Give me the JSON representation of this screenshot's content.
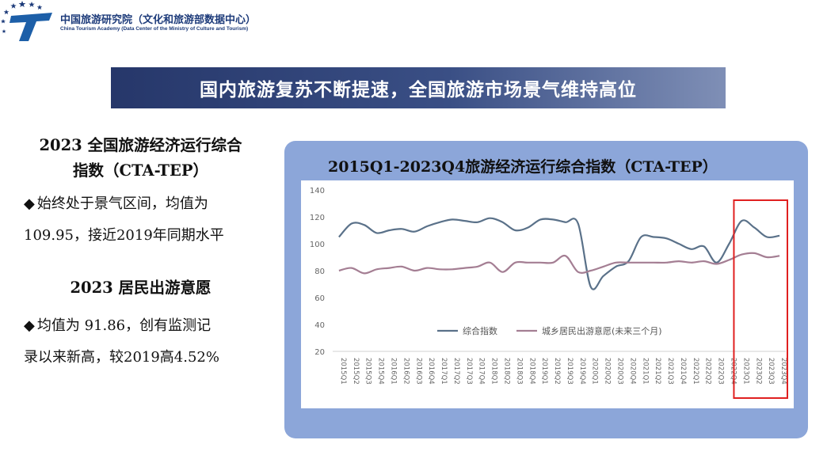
{
  "header": {
    "org_cn": "中国旅游研究院（文化和旅游部数据中心）",
    "org_en": "China Tourism Academy (Data Center of the Ministry of Culture and Tourism)",
    "logo_colors": {
      "blue": "#1d5fa8",
      "star": "#1d3b7a"
    }
  },
  "banner": {
    "title": "国内旅游复苏不断提速，全国旅游市场景气维持高位"
  },
  "left_panel": {
    "section1": {
      "title_line1": "2023 全国旅游经济运行综合",
      "title_line2": "指数（CTA-TEP）",
      "text_line1": "始终处于景气区间，均值为",
      "text_line2": "109.95，接近2019年同期水平"
    },
    "section2": {
      "title": "2023 居民出游意愿",
      "text_line1": "均值为 91.86，创有监测记",
      "text_line2": "录以来新高，较2019高4.52%"
    }
  },
  "colors": {
    "panel_bg": "#8ca6d9",
    "series1": "#5a7189",
    "series2": "#a47e93",
    "highlight": "#e02020"
  },
  "chart_data": {
    "type": "line",
    "title": "2015Q1-2023Q4旅游经济运行综合指数（CTA-TEP）",
    "xlabel": "",
    "ylabel": "",
    "ylim": [
      20,
      140
    ],
    "yticks": [
      20,
      40,
      60,
      80,
      100,
      120,
      140
    ],
    "grid": false,
    "legend_position": "bottom-center",
    "highlight_categories": [
      "2023Q1",
      "2023Q2",
      "2023Q3",
      "2023Q4"
    ],
    "categories": [
      "2015Q1",
      "2015Q2",
      "2015Q3",
      "2015Q4",
      "2016Q1",
      "2016Q2",
      "2016Q3",
      "2016Q4",
      "2017Q1",
      "2017Q2",
      "2017Q3",
      "2017Q4",
      "2018Q1",
      "2018Q2",
      "2018Q3",
      "2018Q4",
      "2019Q1",
      "2019Q2",
      "2019Q3",
      "2019Q4",
      "2020Q1",
      "2020Q2",
      "2020Q3",
      "2020Q4",
      "2021Q1",
      "2021Q2",
      "2021Q3",
      "2021Q4",
      "2022Q1",
      "2022Q2",
      "2022Q3",
      "2022Q4",
      "2023Q1",
      "2023Q2",
      "2023Q3",
      "2023Q4"
    ],
    "series": [
      {
        "name": "综合指数",
        "values": [
          105,
          115,
          114,
          108,
          110,
          111,
          109,
          113,
          116,
          118,
          117,
          116,
          119,
          116,
          110,
          112,
          118,
          118,
          116,
          115,
          68,
          76,
          83,
          87,
          105,
          105,
          104,
          100,
          96,
          98,
          86,
          100,
          117,
          112,
          105,
          106
        ]
      },
      {
        "name": "城乡居民出游意愿(未来三个月)",
        "values": [
          80,
          82,
          78,
          81,
          82,
          83,
          80,
          82,
          81,
          81,
          82,
          83,
          86,
          79,
          86,
          86,
          86,
          86,
          91,
          79,
          80,
          83,
          86,
          86,
          86,
          86,
          86,
          87,
          86,
          87,
          85,
          88,
          92,
          93,
          90,
          91
        ]
      }
    ]
  }
}
